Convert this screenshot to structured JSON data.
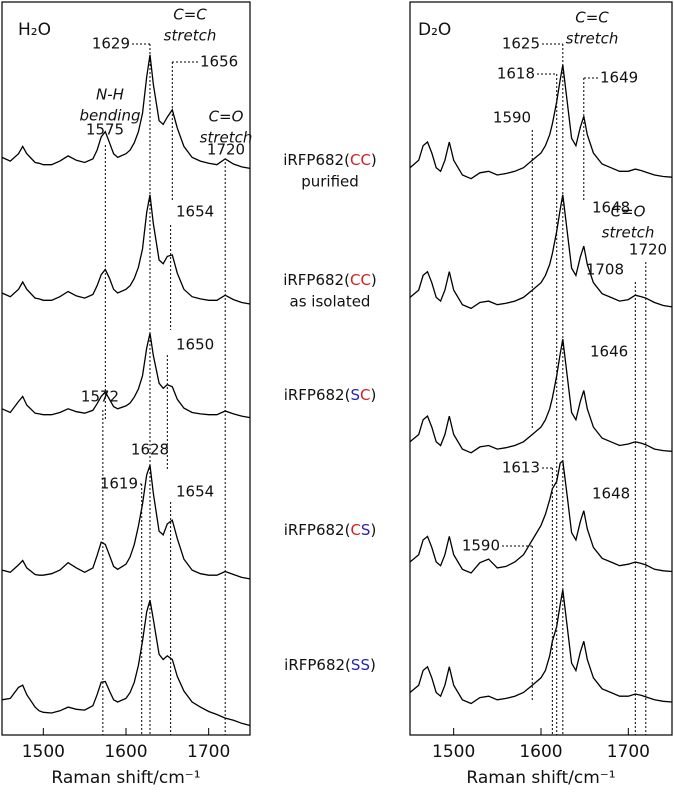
{
  "chart_data": [
    {
      "type": "line",
      "title": "H₂O",
      "xlabel": "Raman shift/cm⁻¹",
      "xlim": [
        1450,
        1750
      ],
      "xticks": [
        1500,
        1600,
        1700
      ],
      "ylim": [
        0,
        100
      ],
      "x": [
        1450,
        1460,
        1470,
        1475,
        1480,
        1490,
        1495,
        1500,
        1510,
        1520,
        1530,
        1540,
        1550,
        1560,
        1565,
        1570,
        1575,
        1580,
        1585,
        1590,
        1600,
        1605,
        1610,
        1615,
        1620,
        1625,
        1629,
        1633,
        1640,
        1645,
        1650,
        1656,
        1662,
        1670,
        1680,
        1690,
        1700,
        1710,
        1720,
        1730,
        1740,
        1750
      ],
      "series": [
        {
          "color": "#000000",
          "values": [
            78.8,
            78.3,
            79.3,
            80.3,
            79.3,
            78.1,
            78,
            77.8,
            77.8,
            78.3,
            79,
            78.4,
            78.1,
            78.6,
            79.8,
            81.6,
            82.3,
            80.8,
            79.3,
            78.8,
            79.3,
            79.8,
            80.8,
            82.3,
            84.8,
            89.8,
            92.8,
            88.8,
            83.8,
            83.3,
            84.3,
            85.3,
            82.8,
            80.3,
            78.8,
            78.3,
            78,
            77.8,
            78.6,
            77.9,
            77.5,
            77.3
          ]
        },
        {
          "color": "#000000",
          "values": [
            60.3,
            59.8,
            60.8,
            61.8,
            60.8,
            59.6,
            59.5,
            59.3,
            59.3,
            59.8,
            60.5,
            59.9,
            59.6,
            60.1,
            61.3,
            62.8,
            63.5,
            62.3,
            60.8,
            60.3,
            60.8,
            61.3,
            62.3,
            63.8,
            66.3,
            71.3,
            73.7,
            69.8,
            64.8,
            64.3,
            65.3,
            65.5,
            63,
            60.8,
            59.8,
            59.5,
            59.3,
            59.3,
            60,
            59.4,
            59,
            58.8
          ]
        },
        {
          "color": "#000000",
          "values": [
            44.5,
            44,
            45.5,
            46.2,
            45,
            43.9,
            43.8,
            43.7,
            43.7,
            44,
            44.5,
            44.1,
            43.9,
            44.3,
            45.2,
            46.2,
            46.8,
            45.8,
            44.8,
            44.5,
            44.9,
            45.3,
            46.1,
            47.2,
            49,
            52.8,
            54.8,
            51.8,
            48,
            47.3,
            47.8,
            47.5,
            45.8,
            44.6,
            44,
            43.8,
            43.7,
            43.7,
            44.2,
            43.8,
            43.5,
            43.3
          ]
        },
        {
          "color": "#000000",
          "values": [
            22.5,
            22.2,
            23.2,
            23.8,
            22.8,
            21.9,
            21.8,
            21.8,
            22,
            22.5,
            23.5,
            22.8,
            22.2,
            22.8,
            24.5,
            26.3,
            26,
            24.5,
            23,
            22.6,
            23.3,
            24.3,
            26,
            28.5,
            31.5,
            35.5,
            36.8,
            33,
            27.8,
            27.3,
            28.8,
            29.3,
            26.8,
            24,
            22.5,
            22,
            21.8,
            21.8,
            22.3,
            21.9,
            21.5,
            21.3
          ]
        },
        {
          "color": "#000000",
          "values": [
            4.8,
            5,
            6.5,
            6.8,
            5.5,
            3.8,
            3.3,
            3.1,
            3,
            3.3,
            3.8,
            3.5,
            3.4,
            4,
            5.5,
            7.2,
            7.3,
            6,
            4.8,
            4.5,
            5,
            5.8,
            7.2,
            9.5,
            12.8,
            16.8,
            18.4,
            15.8,
            11,
            10.3,
            10.8,
            10.3,
            8,
            6,
            4.5,
            3.8,
            3.2,
            2.8,
            2.3,
            2,
            1.6,
            1.3
          ]
        }
      ],
      "annotations": [
        [
          "N-H",
          "bending"
        ],
        [
          "C=C",
          "stretch"
        ],
        [
          "C=O",
          "stretch"
        ]
      ],
      "peaks": [
        1629,
        1656,
        1575,
        1720,
        1654,
        1650,
        1572,
        1628,
        1619,
        1654
      ]
    },
    {
      "type": "line",
      "title": "D₂O",
      "xlabel": "Raman shift/cm⁻¹",
      "xlim": [
        1450,
        1750
      ],
      "xticks": [
        1500,
        1600,
        1700
      ],
      "ylim": [
        0,
        100
      ],
      "x": [
        1450,
        1460,
        1465,
        1470,
        1475,
        1480,
        1485,
        1490,
        1495,
        1500,
        1510,
        1520,
        1530,
        1540,
        1550,
        1560,
        1570,
        1580,
        1590,
        1600,
        1605,
        1610,
        1613,
        1618,
        1622,
        1625,
        1630,
        1635,
        1640,
        1645,
        1649,
        1653,
        1660,
        1670,
        1680,
        1690,
        1700,
        1708,
        1715,
        1720,
        1730,
        1740,
        1750
      ],
      "series": [
        {
          "color": "#000000",
          "values": [
            77.4,
            78.4,
            80.4,
            80.9,
            79.4,
            77.4,
            76.9,
            78.4,
            80.9,
            78.4,
            76.4,
            75.9,
            76.7,
            76.9,
            76.4,
            76.6,
            76.9,
            77.4,
            78.4,
            79.4,
            80.4,
            81.9,
            83.4,
            86.4,
            89.4,
            91.4,
            86.4,
            81.4,
            80.4,
            82.9,
            84.4,
            81.9,
            79.4,
            77.9,
            77.4,
            76.9,
            76.9,
            77.2,
            77,
            76.8,
            76.4,
            76.2,
            76.1
          ]
        },
        {
          "color": "#000000",
          "values": [
            59.7,
            60.7,
            62.7,
            63.2,
            61.7,
            59.7,
            59.2,
            60.7,
            63.2,
            60.7,
            58.7,
            58.2,
            59,
            59.2,
            58.7,
            58.9,
            59.2,
            59.7,
            60.7,
            61.7,
            62.7,
            64.2,
            65.7,
            68.7,
            71.7,
            73.7,
            68.7,
            63.7,
            62.7,
            65.2,
            66.7,
            64.2,
            61.7,
            60.2,
            59.7,
            59.2,
            59.4,
            60,
            59.8,
            59.6,
            59,
            58.6,
            58.4
          ]
        },
        {
          "color": "#000000",
          "values": [
            40,
            41,
            43,
            43.5,
            42,
            40,
            39.5,
            41,
            43.5,
            41,
            39,
            38.5,
            39.3,
            39.5,
            39,
            39.2,
            39.5,
            40,
            41,
            42,
            43,
            44.5,
            46,
            49,
            52,
            54,
            49,
            44,
            43,
            45.5,
            47,
            44.5,
            42,
            40.5,
            40,
            39.5,
            39.7,
            40,
            39.8,
            39.6,
            39,
            38.8,
            38.7
          ]
        },
        {
          "color": "#000000",
          "values": [
            23.6,
            24.6,
            26.6,
            27.1,
            25.6,
            23.6,
            23.1,
            24.6,
            27.1,
            24.6,
            22.6,
            22.1,
            23.5,
            24,
            22.8,
            23,
            23.6,
            24.6,
            26.6,
            28.6,
            30.1,
            32.1,
            33.6,
            34.6,
            37.1,
            37.4,
            32.6,
            27.6,
            26.6,
            29.1,
            30.6,
            28.1,
            25.6,
            24.1,
            23.6,
            23.1,
            23.3,
            23.6,
            23.4,
            23.2,
            22.6,
            22.4,
            22.3
          ]
        },
        {
          "color": "#000000",
          "values": [
            5.8,
            6.8,
            8.8,
            9.3,
            7.8,
            5.8,
            5.3,
            6.8,
            9.3,
            6.8,
            4.8,
            4.3,
            5.1,
            5.3,
            4.8,
            5,
            5.3,
            5.8,
            6.8,
            7.8,
            8.8,
            10.8,
            12.8,
            14.8,
            17.8,
            19.8,
            14.8,
            9.8,
            8.8,
            11.3,
            12.8,
            10.3,
            7.8,
            6.3,
            5.8,
            5.3,
            5.3,
            5.6,
            5.4,
            5.2,
            4.8,
            4.6,
            4.5
          ]
        }
      ],
      "annotations": [
        [
          "C=C",
          "stretch"
        ],
        [
          "C=O",
          "stretch"
        ]
      ],
      "peaks": [
        1625,
        1618,
        1649,
        1590,
        1648,
        1708,
        1720,
        1646,
        1613,
        1648,
        1590
      ]
    }
  ],
  "samples": [
    {
      "prefix": "iRFP682(",
      "sites": [
        "C",
        "C"
      ],
      "suffix": ")",
      "note": "purified"
    },
    {
      "prefix": "iRFP682(",
      "sites": [
        "C",
        "C"
      ],
      "suffix": ")",
      "note": "as isolated"
    },
    {
      "prefix": "iRFP682(",
      "sites": [
        "S",
        "C"
      ],
      "suffix": ")"
    },
    {
      "prefix": "iRFP682(",
      "sites": [
        "C",
        "S"
      ],
      "suffix": ")"
    },
    {
      "prefix": "iRFP682(",
      "sites": [
        "S",
        "S"
      ],
      "suffix": ")"
    }
  ],
  "site_colors": {
    "C": "#d42020",
    "S": "#2323b4"
  }
}
